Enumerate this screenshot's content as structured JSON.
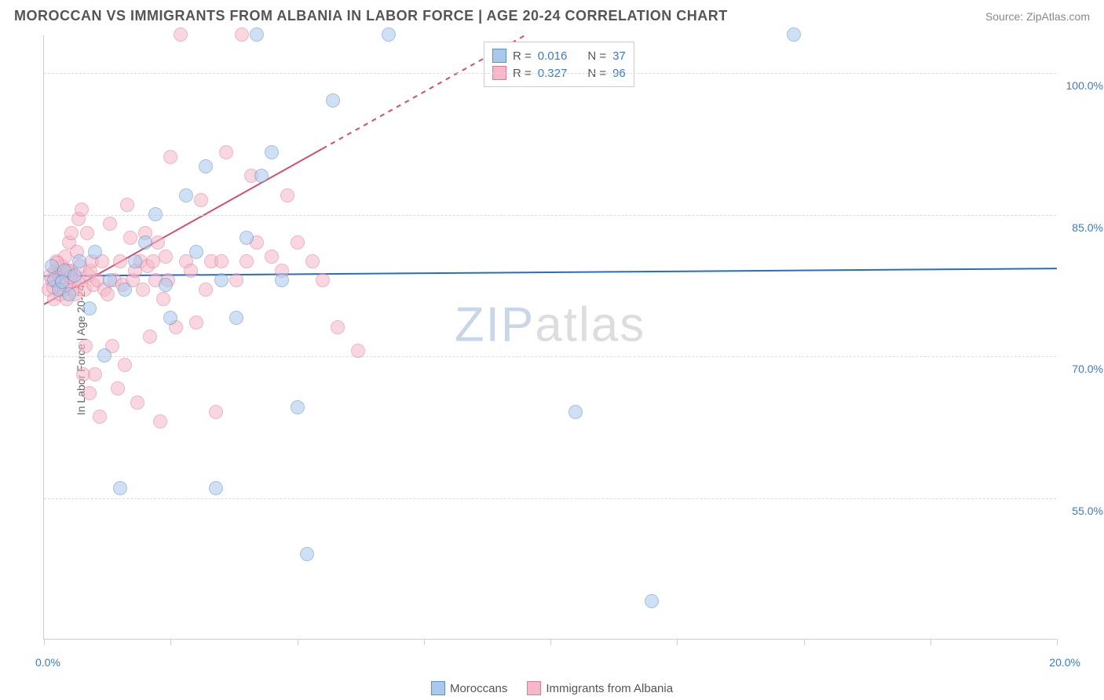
{
  "header": {
    "title": "MOROCCAN VS IMMIGRANTS FROM ALBANIA IN LABOR FORCE | AGE 20-24 CORRELATION CHART",
    "source": "Source: ZipAtlas.com"
  },
  "chart": {
    "type": "scatter",
    "xlim": [
      0,
      20
    ],
    "ylim": [
      40,
      104
    ],
    "y_axis_title": "In Labor Force | Age 20-24",
    "y_ticks": [
      55,
      70,
      85,
      100
    ],
    "y_tick_labels": [
      "55.0%",
      "70.0%",
      "85.0%",
      "100.0%"
    ],
    "x_ticks": [
      0,
      2.5,
      5,
      7.5,
      10,
      12.5,
      15,
      17.5,
      20
    ],
    "x_end_labels": {
      "min": "0.0%",
      "max": "20.0%"
    },
    "background_color": "#ffffff",
    "grid_color": "#dddddd",
    "axis_color": "#cccccc",
    "label_color": "#3a7ac8",
    "marker_radius": 9,
    "marker_opacity": 0.55,
    "watermark": {
      "zip": "ZIP",
      "atlas": "atlas",
      "zip_color": "#c8d6e8",
      "atlas_color": "#dddddd"
    }
  },
  "series_a": {
    "name": "Moroccans",
    "color_fill": "#a8c8ec",
    "color_stroke": "#5a8fc8",
    "n": 37,
    "r": "0.016",
    "trend": {
      "x1": 0,
      "y1": 78.5,
      "x2": 20,
      "y2": 79.3,
      "color": "#2a6bc4",
      "width": 2,
      "dash": "none"
    },
    "points": [
      [
        0.2,
        78
      ],
      [
        0.3,
        77
      ],
      [
        0.4,
        79
      ],
      [
        0.5,
        76.5
      ],
      [
        0.6,
        78.5
      ],
      [
        0.7,
        80
      ],
      [
        0.9,
        75
      ],
      [
        1.0,
        81
      ],
      [
        1.2,
        70
      ],
      [
        1.3,
        78
      ],
      [
        1.5,
        56
      ],
      [
        1.6,
        77
      ],
      [
        1.8,
        80
      ],
      [
        2.0,
        82
      ],
      [
        2.2,
        85
      ],
      [
        2.4,
        77.5
      ],
      [
        2.5,
        74
      ],
      [
        2.8,
        87
      ],
      [
        3.0,
        81
      ],
      [
        3.2,
        90
      ],
      [
        3.4,
        56
      ],
      [
        3.5,
        78
      ],
      [
        3.8,
        74
      ],
      [
        4.0,
        82.5
      ],
      [
        4.2,
        104
      ],
      [
        4.3,
        89
      ],
      [
        4.5,
        91.5
      ],
      [
        4.7,
        78
      ],
      [
        5.0,
        64.5
      ],
      [
        5.2,
        49
      ],
      [
        5.7,
        97
      ],
      [
        6.8,
        104
      ],
      [
        10.5,
        64
      ],
      [
        12.0,
        44
      ],
      [
        14.8,
        104
      ],
      [
        0.15,
        79.5
      ],
      [
        0.35,
        77.8
      ]
    ]
  },
  "series_b": {
    "name": "Immigrants from Albania",
    "color_fill": "#f5b8c8",
    "color_stroke": "#e07a94",
    "n": 96,
    "r": "0.327",
    "trend": {
      "x1": 0,
      "y1": 75.5,
      "x2": 9.5,
      "y2": 104,
      "color": "#d94a6f",
      "width": 2,
      "dash_after_x": 5.5
    },
    "points": [
      [
        0.1,
        77
      ],
      [
        0.15,
        78
      ],
      [
        0.2,
        76
      ],
      [
        0.22,
        79
      ],
      [
        0.25,
        80
      ],
      [
        0.28,
        77.5
      ],
      [
        0.3,
        78.5
      ],
      [
        0.32,
        76.5
      ],
      [
        0.35,
        79.5
      ],
      [
        0.38,
        78
      ],
      [
        0.4,
        77
      ],
      [
        0.42,
        80.5
      ],
      [
        0.45,
        76
      ],
      [
        0.48,
        78.8
      ],
      [
        0.5,
        82
      ],
      [
        0.52,
        79
      ],
      [
        0.55,
        83
      ],
      [
        0.58,
        77
      ],
      [
        0.6,
        78
      ],
      [
        0.62,
        76.5
      ],
      [
        0.65,
        81
      ],
      [
        0.68,
        84.5
      ],
      [
        0.7,
        78
      ],
      [
        0.72,
        79.5
      ],
      [
        0.75,
        85.5
      ],
      [
        0.78,
        68
      ],
      [
        0.8,
        77
      ],
      [
        0.82,
        71
      ],
      [
        0.85,
        83
      ],
      [
        0.88,
        78.5
      ],
      [
        0.9,
        66
      ],
      [
        0.92,
        79
      ],
      [
        0.95,
        80
      ],
      [
        0.98,
        77.5
      ],
      [
        1.0,
        68
      ],
      [
        1.05,
        78
      ],
      [
        1.1,
        63.5
      ],
      [
        1.15,
        80
      ],
      [
        1.2,
        77
      ],
      [
        1.25,
        76.5
      ],
      [
        1.3,
        84
      ],
      [
        1.35,
        71
      ],
      [
        1.4,
        78
      ],
      [
        1.45,
        66.5
      ],
      [
        1.5,
        80
      ],
      [
        1.55,
        77.5
      ],
      [
        1.6,
        69
      ],
      [
        1.65,
        86
      ],
      [
        1.7,
        82.5
      ],
      [
        1.75,
        78
      ],
      [
        1.8,
        79
      ],
      [
        1.85,
        65
      ],
      [
        1.9,
        80
      ],
      [
        1.95,
        77
      ],
      [
        2.0,
        83
      ],
      [
        2.05,
        79.5
      ],
      [
        2.1,
        72
      ],
      [
        2.15,
        80
      ],
      [
        2.2,
        78
      ],
      [
        2.25,
        82
      ],
      [
        2.3,
        63
      ],
      [
        2.35,
        76
      ],
      [
        2.4,
        80.5
      ],
      [
        2.45,
        78
      ],
      [
        2.5,
        91
      ],
      [
        2.6,
        73
      ],
      [
        2.7,
        104
      ],
      [
        2.8,
        80
      ],
      [
        2.9,
        79
      ],
      [
        3.0,
        73.5
      ],
      [
        3.1,
        86.5
      ],
      [
        3.2,
        77
      ],
      [
        3.3,
        80
      ],
      [
        3.4,
        64
      ],
      [
        3.5,
        80
      ],
      [
        3.6,
        91.5
      ],
      [
        3.8,
        78
      ],
      [
        3.9,
        104
      ],
      [
        4.0,
        80
      ],
      [
        4.1,
        89
      ],
      [
        4.2,
        82
      ],
      [
        4.5,
        80.5
      ],
      [
        4.7,
        79
      ],
      [
        4.8,
        87
      ],
      [
        5.0,
        82
      ],
      [
        5.3,
        80
      ],
      [
        5.5,
        78
      ],
      [
        5.8,
        73
      ],
      [
        6.2,
        70.5
      ],
      [
        0.12,
        78.5
      ],
      [
        0.18,
        77.2
      ],
      [
        0.27,
        79.8
      ],
      [
        0.33,
        78.2
      ],
      [
        0.43,
        77.5
      ],
      [
        0.47,
        79
      ],
      [
        0.53,
        78.3
      ]
    ]
  },
  "stats_box": {
    "r_label": "R =",
    "n_label": "N ="
  },
  "legend": {
    "a": "Moroccans",
    "b": "Immigrants from Albania"
  }
}
